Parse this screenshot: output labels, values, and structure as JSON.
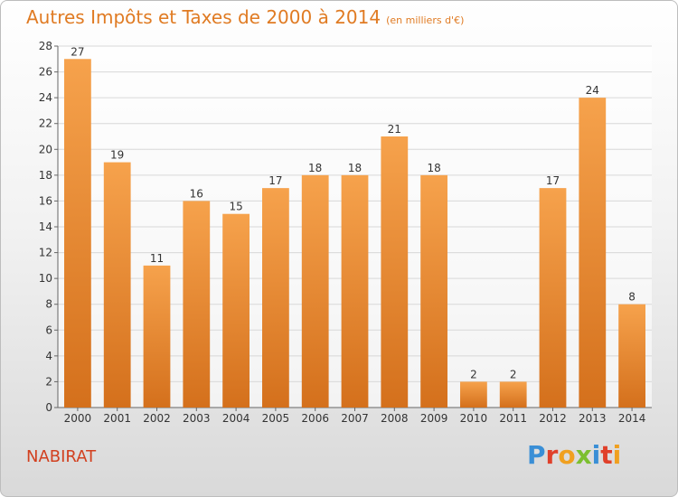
{
  "title": "Autres Impôts et Taxes de 2000 à 2014",
  "subtitle": "(en milliers d'€)",
  "location": "NABIRAT",
  "logo_text": "Proxiti",
  "colors": {
    "title": "#e07b23",
    "bar_top": "#f6a24c",
    "bar_bottom": "#d4701c",
    "location": "#d2401f"
  },
  "chart_data": {
    "type": "bar",
    "categories": [
      "2000",
      "2001",
      "2002",
      "2003",
      "2004",
      "2005",
      "2006",
      "2007",
      "2008",
      "2009",
      "2010",
      "2011",
      "2012",
      "2013",
      "2014"
    ],
    "values": [
      27,
      19,
      11,
      16,
      15,
      17,
      18,
      18,
      21,
      18,
      2,
      2,
      17,
      24,
      8
    ],
    "data_labels": [
      "27",
      "19",
      "11",
      "16",
      "15",
      "17",
      "18",
      "18",
      "21",
      "18",
      "2",
      "2",
      "17",
      "24",
      "8"
    ],
    "ylim": [
      0,
      28
    ],
    "yticks": [
      "0",
      "2",
      "4",
      "6",
      "8",
      "10",
      "12",
      "14",
      "16",
      "18",
      "20",
      "22",
      "24",
      "26",
      "28"
    ],
    "grid": true,
    "legend": "none"
  }
}
